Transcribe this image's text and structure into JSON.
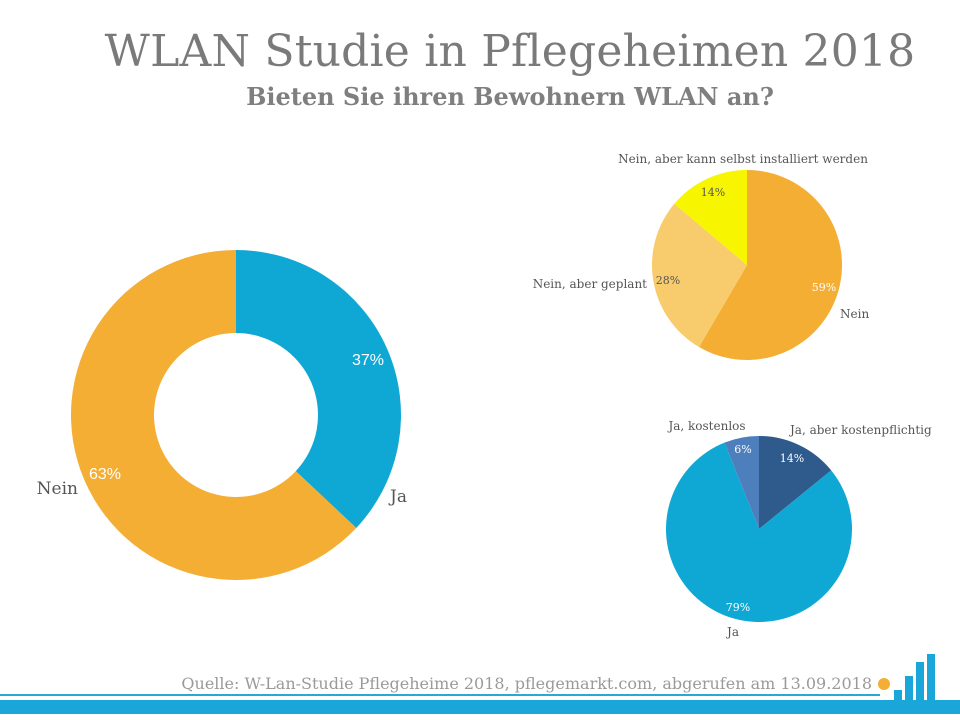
{
  "header": {
    "title": "WLAN Studie in Pflegeheimen 2018",
    "subtitle": "Bieten Sie ihren Bewohnern WLAN an?"
  },
  "footer": {
    "source": "Quelle: W-Lan-Studie Pflegeheime 2018, pflegemarkt.com, abgerufen am 13.09.2018"
  },
  "colors": {
    "orange": "#f3ae33",
    "blue": "#0fa8d4",
    "light_orange": "#f8cc6c",
    "yellow": "#f7f600",
    "dark_blue": "#2e5a8c",
    "mid_blue": "#4d7fbd",
    "brand_blue": "#1aa6d9",
    "dot": "#f3ae33"
  },
  "chart_data": [
    {
      "id": "main",
      "type": "pie",
      "variant": "donut",
      "slices": [
        {
          "label": "Ja",
          "value": 37,
          "value_label": "37%",
          "color": "#0fa8d4"
        },
        {
          "label": "Nein",
          "value": 63,
          "value_label": "63%",
          "color": "#f3ae33"
        }
      ]
    },
    {
      "id": "nein_breakdown",
      "type": "pie",
      "slices": [
        {
          "label": "Nein",
          "value": 59,
          "value_label": "59%",
          "color": "#f3ae33"
        },
        {
          "label": "Nein, aber geplant",
          "value": 28,
          "value_label": "28%",
          "color": "#f8cc6c"
        },
        {
          "label": "Nein, aber kann selbst installiert werden",
          "value": 14,
          "value_label": "14%",
          "color": "#f7f600"
        }
      ]
    },
    {
      "id": "ja_breakdown",
      "type": "pie",
      "slices": [
        {
          "label": "Ja, aber kostenpflichtig",
          "value": 14,
          "value_label": "14%",
          "color": "#2e5a8c"
        },
        {
          "label": "Ja",
          "value": 79,
          "value_label": "79%",
          "color": "#0fa8d4"
        },
        {
          "label": "Ja, kostenlos",
          "value": 6,
          "value_label": "6%",
          "color": "#4d7fbd"
        }
      ]
    }
  ]
}
